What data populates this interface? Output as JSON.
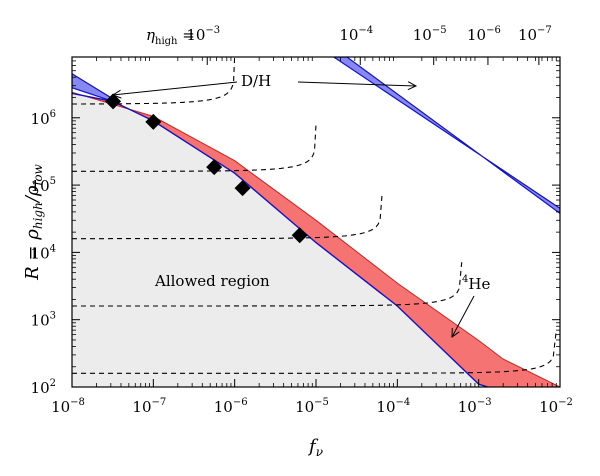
{
  "chart_data": {
    "type": "line",
    "x_scale": "log",
    "y_scale": "log",
    "xlim": [
      1e-08,
      0.01
    ],
    "ylim": [
      100,
      8000000
    ],
    "xlabel": "f_ν",
    "ylabel": "R = ρ_high / ρ_low",
    "top_axis_label": "η_high =",
    "x_ticks": [
      {
        "value": 1e-08,
        "base": "10",
        "exp": "−8"
      },
      {
        "value": 1e-07,
        "base": "10",
        "exp": "−7"
      },
      {
        "value": 1e-06,
        "base": "10",
        "exp": "−6"
      },
      {
        "value": 1e-05,
        "base": "10",
        "exp": "−5"
      },
      {
        "value": 0.0001,
        "base": "10",
        "exp": "−4"
      },
      {
        "value": 0.001,
        "base": "10",
        "exp": "−3"
      },
      {
        "value": 0.01,
        "base": "10",
        "exp": "−2"
      }
    ],
    "y_ticks": [
      {
        "value": 100,
        "base": "10",
        "exp": "2"
      },
      {
        "value": 1000,
        "base": "10",
        "exp": "3"
      },
      {
        "value": 10000,
        "base": "10",
        "exp": "4"
      },
      {
        "value": 100000,
        "base": "10",
        "exp": "5"
      },
      {
        "value": 1000000,
        "base": "10",
        "exp": "6"
      }
    ],
    "top_ticks": [
      {
        "f": 4.6e-07,
        "base": "10",
        "exp": "−3"
      },
      {
        "f": 3.5e-05,
        "base": "10",
        "exp": "−4"
      },
      {
        "f": 0.00028,
        "base": "10",
        "exp": "−5"
      },
      {
        "f": 0.0013,
        "base": "10",
        "exp": "−6"
      },
      {
        "f": 0.0055,
        "base": "10",
        "exp": "−7"
      }
    ],
    "eta_contours": [
      {
        "f_asym": 1e-06,
        "r_asym": 1600000
      },
      {
        "f_asym": 1e-05,
        "r_asym": 160000
      },
      {
        "f_asym": 6.5e-05,
        "r_asym": 16000
      },
      {
        "f_asym": 0.00062,
        "r_asym": 1600
      },
      {
        "f_asym": 0.009,
        "r_asym": 160
      }
    ],
    "allowed_region_boundary": [
      [
        1e-08,
        2300000
      ],
      [
        3.2e-08,
        1750000
      ],
      [
        1e-07,
        900000
      ],
      [
        1e-06,
        150000
      ],
      [
        1e-05,
        14000
      ],
      [
        0.0001,
        1600
      ],
      [
        0.001,
        110
      ],
      [
        0.0013,
        100
      ]
    ],
    "he4_band_upper": [
      [
        1e-08,
        2400000
      ],
      [
        1e-07,
        1050000
      ],
      [
        1e-06,
        230000
      ],
      [
        1e-05,
        30000
      ],
      [
        0.0001,
        3500
      ],
      [
        0.001,
        490
      ],
      [
        0.002,
        260
      ],
      [
        0.01,
        100
      ]
    ],
    "dh_band_left": {
      "upper": [
        [
          1e-08,
          4500000
        ],
        [
          3.2e-08,
          1900000
        ]
      ],
      "lower": [
        [
          1e-08,
          2800000
        ],
        [
          3.2e-08,
          1750000
        ]
      ]
    },
    "dh_band_right": {
      "upper": [
        [
          1.65e-05,
          8000000
        ],
        [
          0.01,
          45000
        ]
      ],
      "lower": [
        [
          2.4e-05,
          8000000
        ],
        [
          0.01,
          38000
        ]
      ]
    },
    "diamond_points": [
      {
        "f": 3.2e-08,
        "r": 1750000
      },
      {
        "f": 1e-07,
        "r": 870000
      },
      {
        "f": 5.6e-07,
        "r": 185000
      },
      {
        "f": 1.25e-06,
        "r": 90000
      },
      {
        "f": 6.3e-06,
        "r": 18000
      }
    ],
    "annotations": {
      "allowed": "Allowed region",
      "dh": "D/H",
      "he4_sup": "4",
      "he4": "He"
    },
    "colors": {
      "he4_band": "#f46464",
      "he4_edge": "#d31f1f",
      "dh_band": "#6a6af0",
      "dh_edge": "#1414b8",
      "allowed_fill": "#ececec"
    }
  }
}
